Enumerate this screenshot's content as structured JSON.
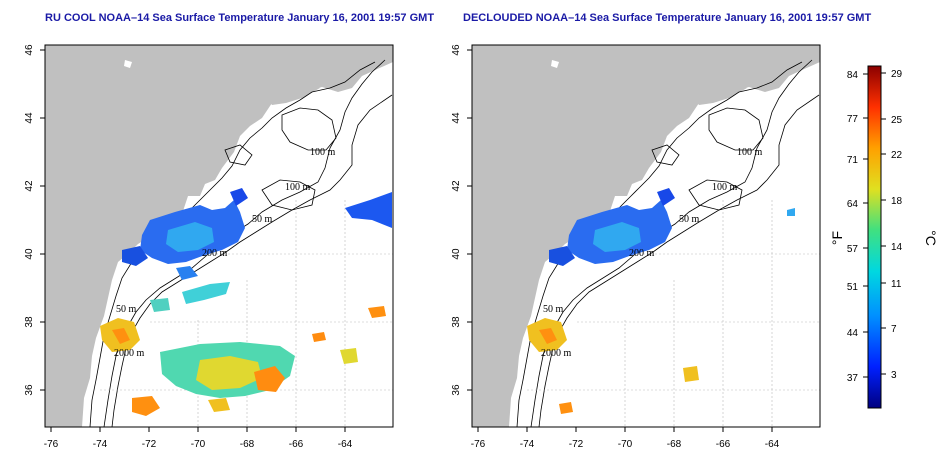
{
  "panels": [
    {
      "title": "RU COOL NOAA–14 Sea Surface Temperature January 16, 2001 19:57 GMT"
    },
    {
      "title": "DECLOUDED NOAA–14 Sea Surface Temperature January 16, 2001 19:57 GMT"
    }
  ],
  "map": {
    "lon_ticks": [
      "-76",
      "-74",
      "-72",
      "-70",
      "-68",
      "-66",
      "-64"
    ],
    "lat_ticks": [
      "46",
      "44",
      "42",
      "40",
      "38",
      "36"
    ],
    "contour_labels": [
      "100 m",
      "100 m",
      "50 m",
      "200 m",
      "50 m",
      "2000 m"
    ],
    "land_color": "#c0c0c0",
    "ocean_color": "#ffffff"
  },
  "colorbar": {
    "f_ticks": [
      "84",
      "77",
      "71",
      "64",
      "57",
      "51",
      "44",
      "37"
    ],
    "c_ticks": [
      "29",
      "25",
      "22",
      "18",
      "14",
      "11",
      "7",
      "3"
    ],
    "f_unit": "°F",
    "c_unit": "°C",
    "gradient_colors": [
      "#000080",
      "#0020ff",
      "#0090ff",
      "#00d8e0",
      "#40e080",
      "#e0e020",
      "#ffa000",
      "#ff3000",
      "#8b0000"
    ]
  }
}
